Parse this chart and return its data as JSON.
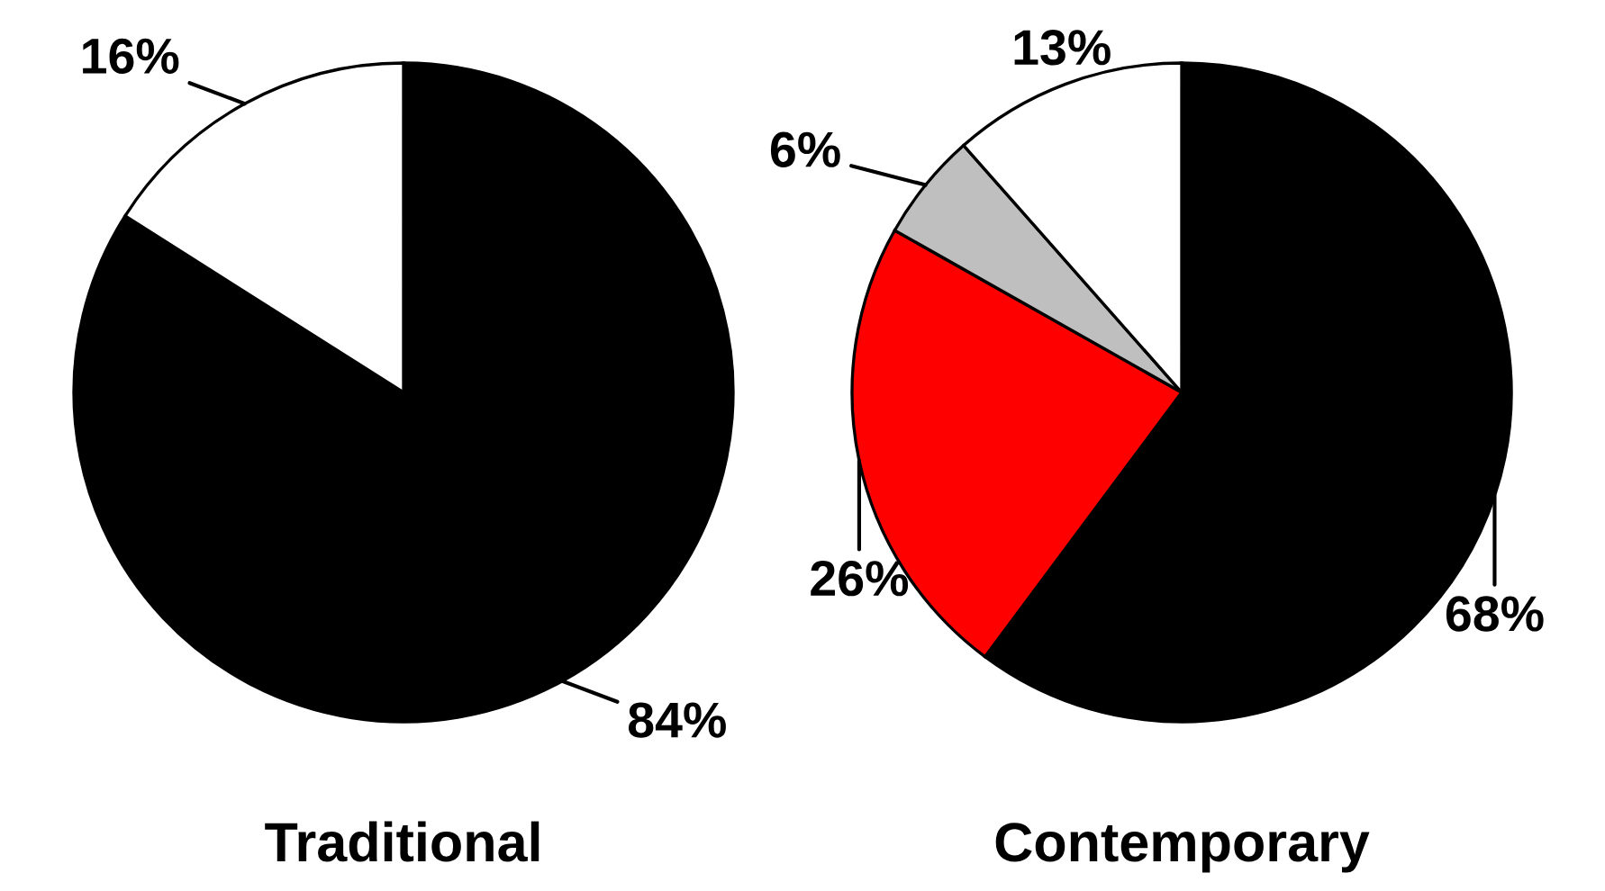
{
  "chart_data": [
    {
      "type": "pie",
      "title": "Traditional",
      "categories": [
        null,
        null
      ],
      "values": [
        84,
        16
      ],
      "colors": [
        "#000000",
        "#ffffff"
      ],
      "value_labels": [
        "84%",
        "16%"
      ]
    },
    {
      "type": "pie",
      "title": "Contemporary",
      "categories": [
        null,
        null,
        null,
        null
      ],
      "values": [
        68,
        26,
        6,
        13
      ],
      "colors": [
        "#000000",
        "#ff0000",
        "#bfbfbf",
        "#ffffff"
      ],
      "value_labels": [
        "68%",
        "26%",
        "6%",
        "13%"
      ]
    }
  ]
}
